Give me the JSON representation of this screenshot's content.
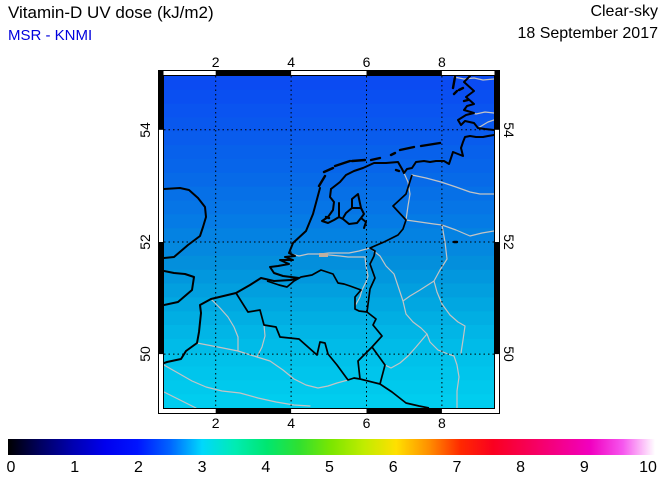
{
  "header": {
    "title": "Vitamin-D UV dose (kJ/m2)",
    "source": "MSR - KNMI",
    "source_color": "#0000dd",
    "condition": "Clear-sky",
    "date": "18 September 2017"
  },
  "map": {
    "region": "Netherlands-Belgium-NW-Europe",
    "lon_ticks": [
      "2",
      "4",
      "6",
      "8"
    ],
    "lat_ticks": [
      "54",
      "52",
      "50"
    ],
    "graticule_style": "dotted-black",
    "coastline_color": "#000000",
    "river_border_color": "#c4c4c4",
    "field_gradient_top_to_bottom": [
      "#0b4bf2",
      "#0959ee",
      "#0768e9",
      "#057ae5",
      "#0390dc",
      "#01aae2",
      "#00c0ea",
      "#00cdef"
    ]
  },
  "colorbar": {
    "tick_labels": [
      "0",
      "1",
      "2",
      "3",
      "4",
      "5",
      "6",
      "7",
      "8",
      "9",
      "10"
    ],
    "unit": "kJ/m2",
    "gradient_colors": [
      "#000000",
      "#000060",
      "#0000b0",
      "#0000ee",
      "#0014ff",
      "#0064ff",
      "#00d8fc",
      "#00ecb4",
      "#00e670",
      "#30e030",
      "#7ce600",
      "#c0ec00",
      "#ffe000",
      "#ff9000",
      "#ff2800",
      "#fa0020",
      "#f70052",
      "#f40088",
      "#f100c0",
      "#f656ee",
      "#ffffff"
    ]
  }
}
